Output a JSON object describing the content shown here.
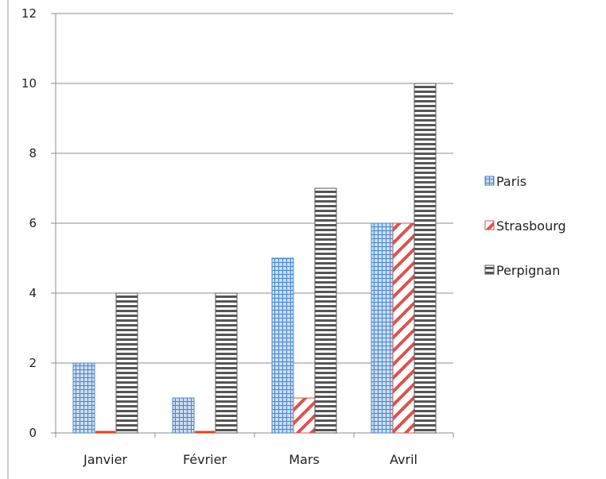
{
  "chart_data": {
    "type": "bar",
    "categories": [
      "Janvier",
      "Février",
      "Mars",
      "Avril"
    ],
    "series": [
      {
        "name": "Paris",
        "values": [
          2,
          1,
          5,
          6
        ],
        "fill": "#bcd4ee",
        "pattern": "grid",
        "pattern_color": "#4a86c8"
      },
      {
        "name": "Strasbourg",
        "values": [
          0,
          0,
          1,
          6
        ],
        "fill": "#ffffff",
        "pattern": "diagonal",
        "pattern_color": "#d9534f"
      },
      {
        "name": "Perpignan",
        "values": [
          4,
          4,
          7,
          10
        ],
        "fill": "#ffffff",
        "pattern": "horizontal",
        "pattern_color": "#555555"
      }
    ],
    "ylim": [
      0,
      12
    ],
    "yticks": [
      "0",
      "2",
      "4",
      "6",
      "8",
      "10",
      "12"
    ],
    "grid": true,
    "legend_position": "right",
    "zero_value_color": "#e8401c",
    "title": "",
    "xlabel": "",
    "ylabel": ""
  }
}
